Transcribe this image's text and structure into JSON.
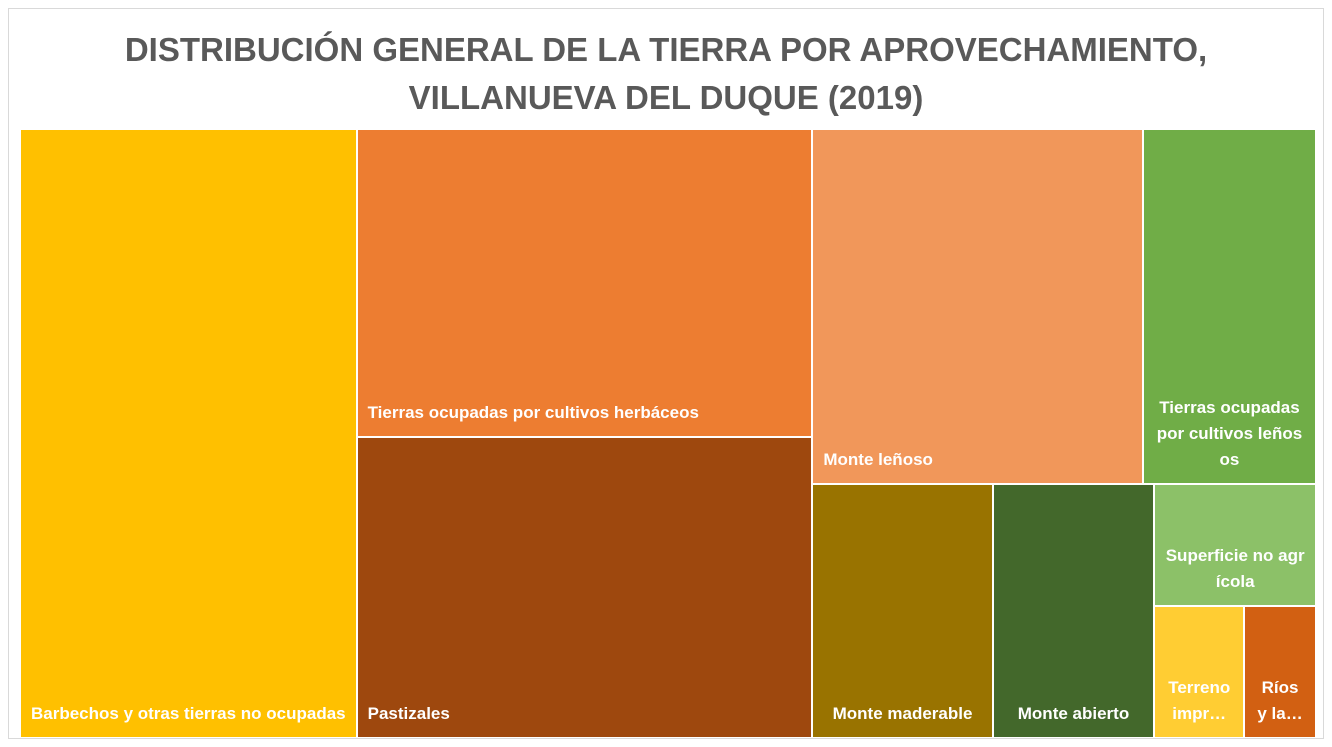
{
  "chart_data": {
    "type": "treemap",
    "title": "DISTRIBUCIÓN GENERAL DE LA TIERRA POR APROVECHAMIENTO, VILLANUEVA DEL DUQUE (2019)",
    "categories": [
      "Barbechos y otras tierras no ocupadas",
      "Tierras ocupadas por cultivos herbáceos",
      "Pastizales",
      "Monte leñoso",
      "Tierras ocupadas por cultivos leñosos",
      "Monte maderable",
      "Monte abierto",
      "Superficie no agrícola",
      "Terreno impr…",
      "Ríos y la…"
    ],
    "values": [
      26.0,
      17.8,
      17.4,
      14.9,
      7.8,
      5.8,
      5.2,
      2.5,
      1.5,
      1.2
    ],
    "colors": [
      "#FFC000",
      "#ED7D31",
      "#9E480E",
      "#F1975A",
      "#70AD47",
      "#997300",
      "#43682B",
      "#8CC168",
      "#FFCD33",
      "#D26012"
    ]
  }
}
